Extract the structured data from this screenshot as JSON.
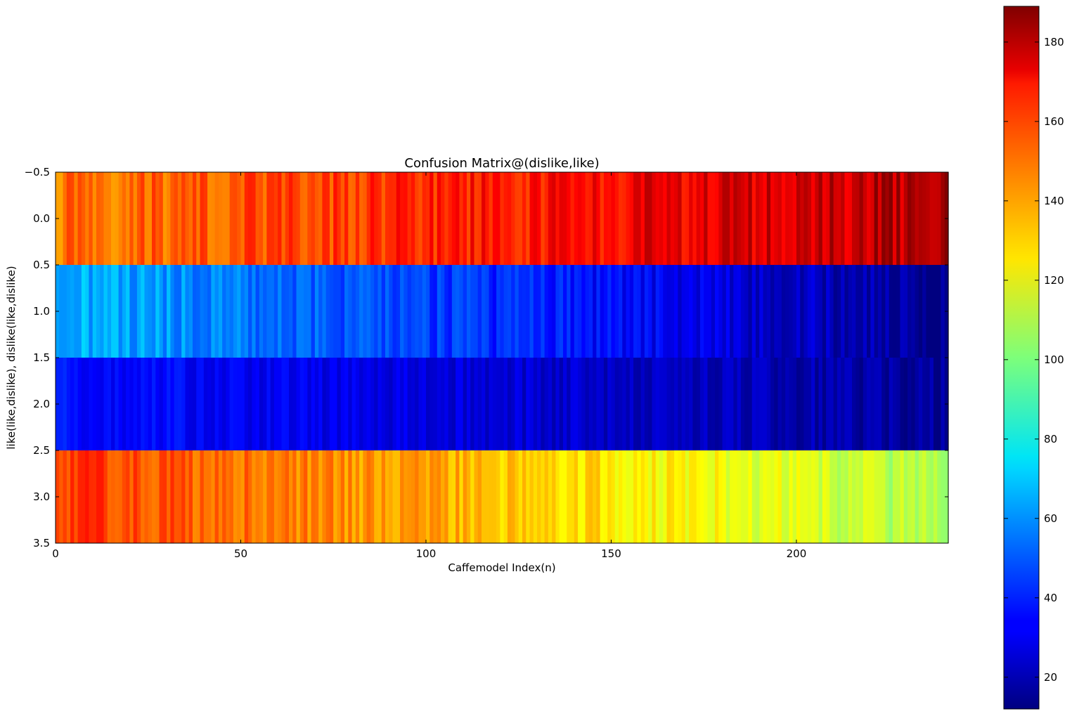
{
  "chart_data": {
    "type": "heatmap",
    "title": "Confusion Matrix@(dislike,like)",
    "xlabel": "Caffemodel Index(n)",
    "ylabel": "like(like,dislike), dislike(like,dislike)",
    "xlim": [
      0,
      241
    ],
    "ylim": [
      3.5,
      -0.5
    ],
    "xticks": [
      0,
      50,
      100,
      150,
      200
    ],
    "yticks": [
      -0.5,
      0.0,
      0.5,
      1.0,
      1.5,
      2.0,
      2.5,
      3.0,
      3.5
    ],
    "ytick_labels": [
      "−0.5",
      "0.0",
      "0.5",
      "1.0",
      "1.5",
      "2.0",
      "2.5",
      "3.0",
      "3.5"
    ],
    "n_columns": 241,
    "colormap": "jet",
    "colorbar": {
      "vmin": 12,
      "vmax": 189,
      "ticks": [
        20,
        40,
        60,
        80,
        100,
        120,
        140,
        160,
        180
      ]
    },
    "grid": false,
    "rows": [
      {
        "row": 0,
        "start_value": 146,
        "end_value": 181,
        "spread": 10
      },
      {
        "row": 1,
        "start_value": 66,
        "end_value": 15,
        "spread": 8
      },
      {
        "row": 2,
        "start_value": 37,
        "end_value": 17,
        "spread": 6
      },
      {
        "row": 3,
        "start_value": 158,
        "end_value": 108,
        "spread": 8
      }
    ]
  }
}
